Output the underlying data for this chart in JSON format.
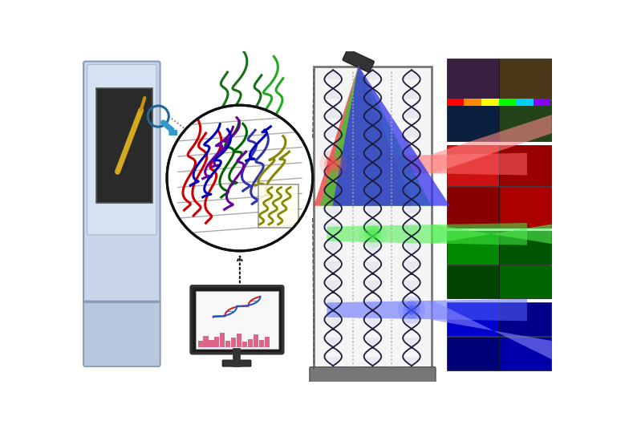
{
  "bg_color": "#ffffff",
  "machine_body_color": "#c8d4e8",
  "machine_edge_color": "#8899bb",
  "machine_highlight": "#d8e6f5",
  "machine_bottom": "#b8c8dc",
  "screen_color": "#303030",
  "dna_strand_color": "#1a1a3a",
  "dna_panel_bg": "#f8f8f8",
  "dna_panel_edge": "#888888",
  "dna_base_color": "#606080",
  "laser_red": "#ee3333",
  "laser_green": "#33cc33",
  "laser_blue": "#3333ee",
  "beam_red_alpha": 0.65,
  "beam_green_alpha": 0.65,
  "beam_blue_alpha": 0.65,
  "panel_red_colors": [
    "#cc0000",
    "#aa0000",
    "#ee1111",
    "#bb0000"
  ],
  "panel_green_colors": [
    "#007700",
    "#005500",
    "#009900",
    "#006600"
  ],
  "panel_blue_colors": [
    "#0000aa",
    "#000088",
    "#0000cc",
    "#000099"
  ],
  "circle_strand_colors": [
    "#cc0000",
    "#cc0000",
    "#cc0000",
    "#006600",
    "#006600",
    "#006600",
    "#220066",
    "#220066",
    "#220066",
    "#0000bb",
    "#0000bb",
    "#0000bb",
    "#aaaa00",
    "#aaaa00"
  ],
  "gray_line_color": "#999999"
}
